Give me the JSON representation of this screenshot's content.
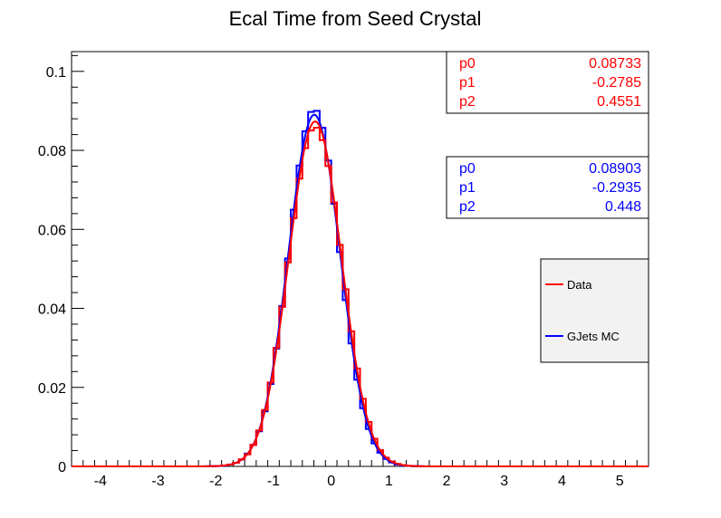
{
  "chart_data": {
    "type": "histogram",
    "title": "Ecal Time from Seed Crystal",
    "xlabel": "",
    "ylabel": "",
    "xlim": [
      -4.5,
      5.5
    ],
    "ylim": [
      0,
      0.105
    ],
    "x_ticks": [
      "-4",
      "-3",
      "-2",
      "-1",
      "0",
      "1",
      "2",
      "3",
      "4",
      "5"
    ],
    "x_tick_values": [
      -4,
      -3,
      -2,
      -1,
      0,
      1,
      2,
      3,
      4,
      5
    ],
    "y_ticks": [
      "0",
      "0.02",
      "0.04",
      "0.06",
      "0.08",
      "0.1"
    ],
    "y_tick_values": [
      0,
      0.02,
      0.04,
      0.06,
      0.08,
      0.1
    ],
    "bin_width": 0.1,
    "series": [
      {
        "name": "GJets MC",
        "color": "#0000ff",
        "fit": {
          "p0": 0.08903,
          "p1": -0.2935,
          "p2": 0.448
        }
      },
      {
        "name": "Data",
        "color": "#ff0000",
        "fit": {
          "p0": 0.08733,
          "p1": -0.2785,
          "p2": 0.4551
        }
      }
    ],
    "stat_boxes": [
      {
        "color": "#ff0000",
        "rows": [
          {
            "label": "p0",
            "value": "0.08733"
          },
          {
            "label": "p1",
            "value": "-0.2785"
          },
          {
            "label": "p2",
            "value": "0.4551"
          }
        ]
      },
      {
        "color": "#0000ff",
        "rows": [
          {
            "label": "p0",
            "value": "0.08903"
          },
          {
            "label": "p1",
            "value": "-0.2935"
          },
          {
            "label": "p2",
            "value": "0.448"
          }
        ]
      }
    ],
    "legend": {
      "placement": "right",
      "entries": [
        {
          "label": "Data",
          "color": "#ff0000"
        },
        {
          "label": "GJets MC",
          "color": "#0000ff"
        }
      ]
    },
    "grid": false
  }
}
